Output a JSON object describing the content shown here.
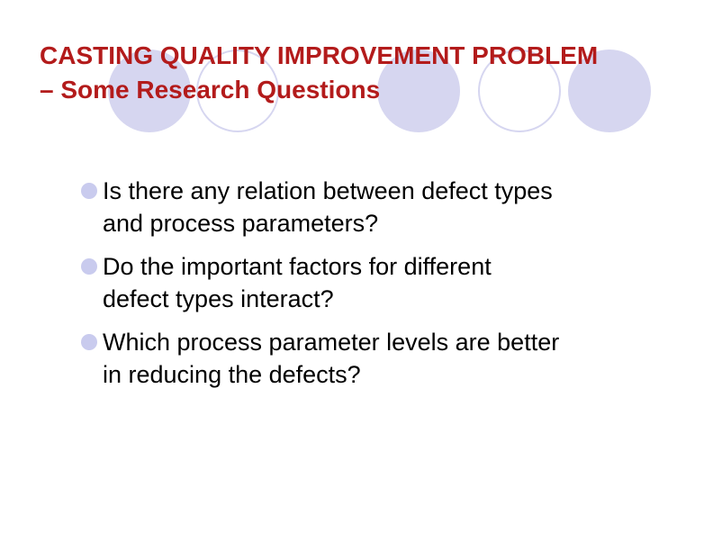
{
  "slide": {
    "title_lines": [
      "CASTING QUALITY IMPROVEMENT PROBLEM",
      "–  Some Research Questions"
    ],
    "bullets": [
      {
        "lines": [
          "Is there any relation between defect types",
          "and process parameters?"
        ]
      },
      {
        "lines": [
          "Do the important factors for different",
          "defect types interact?"
        ]
      },
      {
        "lines": [
          "Which process parameter levels are better",
          "in reducing the defects?"
        ]
      }
    ]
  },
  "colors": {
    "title": "#b31b1b",
    "circle_fill": "#d6d6f0",
    "circle_outline": "#d6d6f0",
    "bullet": "#c9cbee",
    "text": "#000000"
  }
}
